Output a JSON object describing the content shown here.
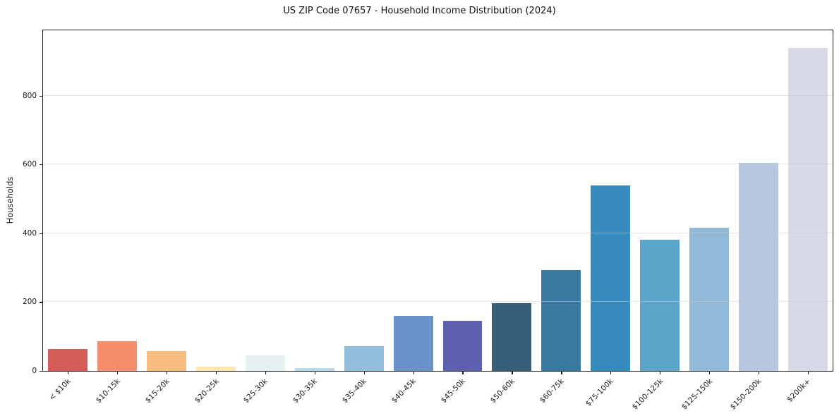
{
  "chart_data": {
    "type": "bar",
    "title": "US ZIP Code 07657 - Household Income Distribution (2024)",
    "xlabel": "",
    "ylabel": "Households",
    "categories": [
      "< $10k",
      "$10-15k",
      "$15-20k",
      "$20-25k",
      "$25-30k",
      "$30-35k",
      "$35-40k",
      "$40-45k",
      "$45-50k",
      "$50-60k",
      "$60-75k",
      "$75-100k",
      "$100-125k",
      "$125-150k",
      "$150-200k",
      "$200k+"
    ],
    "values": [
      63,
      87,
      58,
      12,
      46,
      8,
      71,
      159,
      145,
      197,
      294,
      540,
      381,
      417,
      605,
      938
    ],
    "bar_colors": [
      "#d65c57",
      "#f58e6c",
      "#f8bd80",
      "#fae6ae",
      "#e4f0f2",
      "#b8d9ea",
      "#93bfdd",
      "#6b93c9",
      "#5c60ad",
      "#375f7a",
      "#3879a1",
      "#378abc",
      "#5ca4c9",
      "#92b9d8",
      "#b6c8e0",
      "#d7d9e7"
    ],
    "ylim": [
      0,
      990
    ],
    "yticks": [
      0,
      200,
      400,
      600,
      800
    ],
    "grid": "horizontal",
    "legend": "none",
    "colors": {
      "axis": "#1a1a1a",
      "gridline": "#cccccc",
      "background": "#ffffff"
    }
  }
}
